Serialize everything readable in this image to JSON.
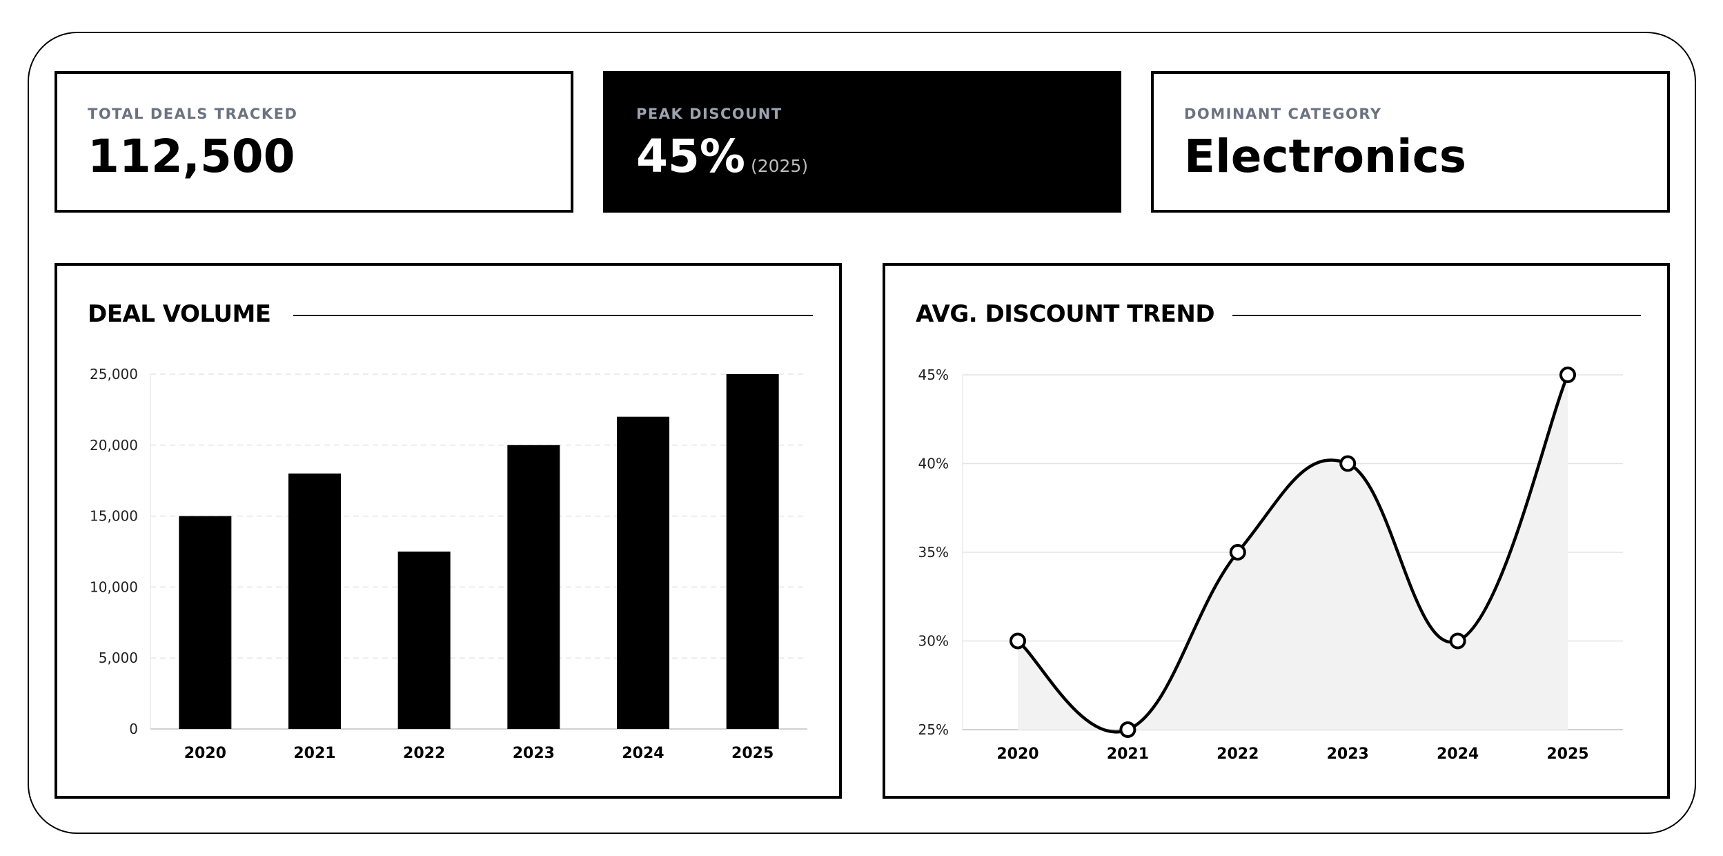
{
  "kpis": {
    "total_deals": {
      "label": "TOTAL DEALS TRACKED",
      "value": "112,500"
    },
    "peak_discount": {
      "label": "PEAK DISCOUNT",
      "value": "45%",
      "note": "(2025)"
    },
    "dominant_category": {
      "label": "DOMINANT CATEGORY",
      "value": "Electronics"
    }
  },
  "chart_data": [
    {
      "type": "bar",
      "title": "DEAL VOLUME",
      "categories": [
        "2020",
        "2021",
        "2022",
        "2023",
        "2024",
        "2025"
      ],
      "values": [
        15000,
        18000,
        12500,
        20000,
        22000,
        25000
      ],
      "ylim": [
        0,
        25000
      ],
      "yticks": [
        0,
        5000,
        10000,
        15000,
        20000,
        25000
      ],
      "ytick_labels": [
        "0",
        "5,000",
        "10,000",
        "15,000",
        "20,000",
        "25,000"
      ],
      "grid": true,
      "bar_color": "#000000"
    },
    {
      "type": "area",
      "title": "AVG. DISCOUNT TREND",
      "categories": [
        "2020",
        "2021",
        "2022",
        "2023",
        "2024",
        "2025"
      ],
      "values": [
        30,
        25,
        35,
        40,
        30,
        45
      ],
      "ylim": [
        25,
        45
      ],
      "yticks": [
        25,
        30,
        35,
        40,
        45
      ],
      "ytick_labels": [
        "25%",
        "30%",
        "35%",
        "40%",
        "45%"
      ],
      "grid": true,
      "line_color": "#000000",
      "fill_color": "#f2f2f2"
    }
  ]
}
